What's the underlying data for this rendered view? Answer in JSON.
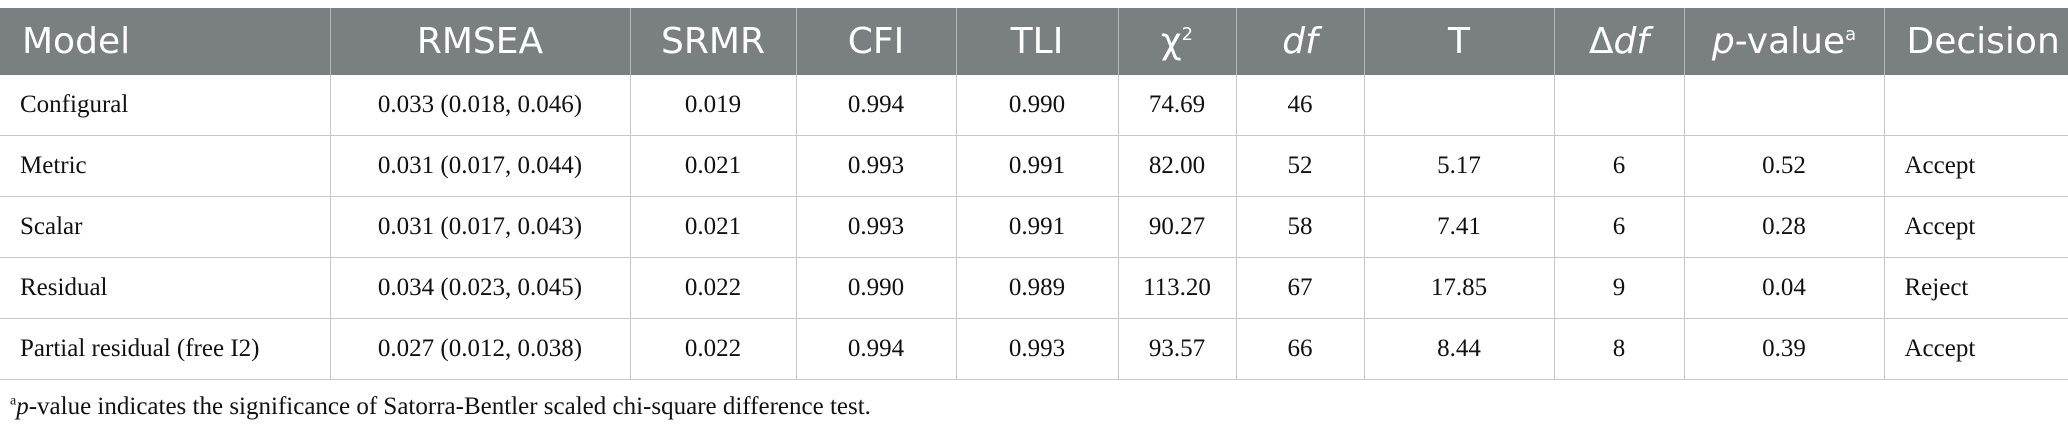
{
  "table": {
    "headers": {
      "model": "Model",
      "rmsea": "RMSEA",
      "srmr": "SRMR",
      "cfi": "CFI",
      "tli": "TLI",
      "chi_sq": "χ",
      "chi_sq_sup": "2",
      "df": "df",
      "t": "T",
      "delta": "Δ",
      "delta_df": "df",
      "pvalue_p": "p",
      "pvalue_rest": "-value",
      "pvalue_sup": "a",
      "decision": "Decision"
    },
    "rows": [
      {
        "model": "Configural",
        "rmsea": "0.033 (0.018, 0.046)",
        "srmr": "0.019",
        "cfi": "0.994",
        "tli": "0.990",
        "chi_sq": "74.69",
        "df": "46",
        "t": "",
        "delta_df": "",
        "pvalue": "",
        "decision": ""
      },
      {
        "model": "Metric",
        "rmsea": "0.031 (0.017, 0.044)",
        "srmr": "0.021",
        "cfi": "0.993",
        "tli": "0.991",
        "chi_sq": "82.00",
        "df": "52",
        "t": "5.17",
        "delta_df": "6",
        "pvalue": "0.52",
        "decision": "Accept"
      },
      {
        "model": "Scalar",
        "rmsea": "0.031 (0.017, 0.043)",
        "srmr": "0.021",
        "cfi": "0.993",
        "tli": "0.991",
        "chi_sq": "90.27",
        "df": "58",
        "t": "7.41",
        "delta_df": "6",
        "pvalue": "0.28",
        "decision": "Accept"
      },
      {
        "model": "Residual",
        "rmsea": "0.034 (0.023, 0.045)",
        "srmr": "0.022",
        "cfi": "0.990",
        "tli": "0.989",
        "chi_sq": "113.20",
        "df": "67",
        "t": "17.85",
        "delta_df": "9",
        "pvalue": "0.04",
        "decision": "Reject"
      },
      {
        "model": "Partial residual (free I2)",
        "rmsea": "0.027 (0.012, 0.038)",
        "srmr": "0.022",
        "cfi": "0.994",
        "tli": "0.993",
        "chi_sq": "93.57",
        "df": "66",
        "t": "8.44",
        "delta_df": "8",
        "pvalue": "0.39",
        "decision": "Accept"
      }
    ]
  },
  "footnote": {
    "marker": "a",
    "p": "p",
    "text": "-value indicates the significance of Satorra-Bentler scaled chi-square difference test."
  }
}
